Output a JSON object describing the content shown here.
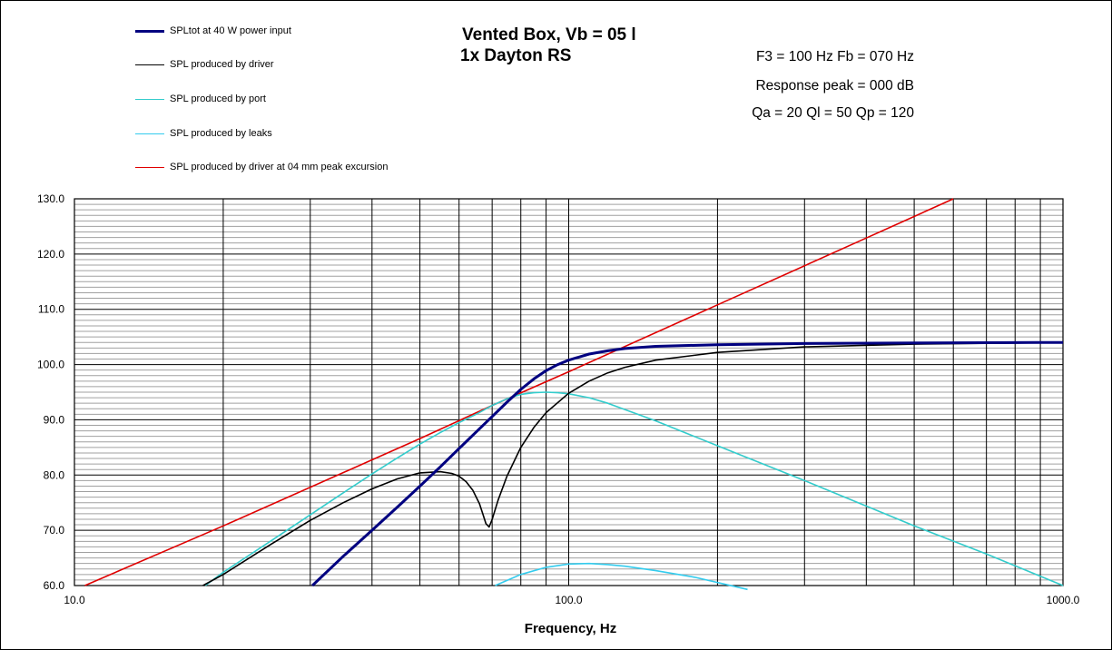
{
  "title_line1": "Vented Box, Vb = 05 l",
  "title_line2": "1x Dayton RS",
  "info": {
    "line1": "F3 = 100 Hz  Fb = 070 Hz",
    "line2": "Response  peak = 000 dB",
    "line3": "Qa = 20  Ql = 50  Qp = 120"
  },
  "legend": [
    {
      "label": "SPLtot at 40 W power input",
      "color": "#000080"
    },
    {
      "label": "SPL produced by driver",
      "color": "#000000"
    },
    {
      "label": "SPL produced by port",
      "color": "#33CCCC"
    },
    {
      "label": "SPL produced by leaks",
      "color": "#33CCEE"
    },
    {
      "label": "SPL produced by driver at 04 mm peak excursion",
      "color": "#E00000"
    }
  ],
  "chart_data": {
    "type": "line",
    "xlabel": "Frequency, Hz",
    "ylabel": "",
    "xscale": "log",
    "xlim": [
      10,
      1000
    ],
    "ylim": [
      60,
      130
    ],
    "xticks": [
      "10.0",
      "100.0",
      "1000.0"
    ],
    "yticks": [
      "60.0",
      "70.0",
      "80.0",
      "90.0",
      "100.0",
      "110.0",
      "120.0",
      "130.0"
    ],
    "grid": true,
    "legend_position": "top-left",
    "series": [
      {
        "name": "SPLtot at 40 W power input",
        "color": "#000080",
        "x": [
          30.3,
          35,
          40,
          45,
          50,
          55,
          60,
          65,
          70,
          75,
          80,
          85,
          90,
          95,
          100,
          110,
          120,
          130,
          150,
          200,
          300,
          500,
          1000
        ],
        "y": [
          60,
          65.3,
          70,
          74.2,
          78.0,
          81.5,
          84.8,
          87.8,
          90.6,
          93.2,
          95.5,
          97.4,
          98.9,
          100.0,
          100.8,
          101.9,
          102.5,
          102.9,
          103.3,
          103.6,
          103.8,
          103.9,
          104.0
        ]
      },
      {
        "name": "SPL produced by driver",
        "color": "#000000",
        "x": [
          18.2,
          20,
          25,
          30,
          35,
          40,
          45,
          50,
          55,
          58,
          60,
          62,
          64,
          66,
          67,
          68,
          69,
          70,
          72,
          75,
          80,
          85,
          90,
          100,
          110,
          120,
          130,
          150,
          200,
          300,
          500,
          1000
        ],
        "y": [
          60,
          62.0,
          67.5,
          71.8,
          75.0,
          77.5,
          79.3,
          80.4,
          80.6,
          80.3,
          79.8,
          78.8,
          77.2,
          74.8,
          73.0,
          71.2,
          70.6,
          72.0,
          75.5,
          79.8,
          85.0,
          88.6,
          91.3,
          94.8,
          97.0,
          98.5,
          99.5,
          100.8,
          102.2,
          103.2,
          103.7,
          104.0
        ]
      },
      {
        "name": "SPL produced by port",
        "color": "#33CCCC",
        "x": [
          18.4,
          20,
          25,
          30,
          35,
          40,
          45,
          50,
          55,
          60,
          65,
          70,
          75,
          80,
          85,
          90,
          95,
          100,
          110,
          120,
          150,
          200,
          300,
          500,
          700,
          1000
        ],
        "y": [
          60,
          62.4,
          68.1,
          72.8,
          76.8,
          80.2,
          83.1,
          85.6,
          87.7,
          89.5,
          91.0,
          92.6,
          93.8,
          94.6,
          94.9,
          95.0,
          94.9,
          94.7,
          94.0,
          93.0,
          89.8,
          85.3,
          79.0,
          70.8,
          65.7,
          60.0
        ]
      },
      {
        "name": "SPL produced by leaks",
        "color": "#33CCEE",
        "x": [
          71,
          80,
          90,
          100,
          110,
          120,
          130,
          150,
          180,
          230
        ],
        "y": [
          60,
          62.0,
          63.3,
          63.9,
          64.0,
          63.8,
          63.5,
          62.7,
          61.5,
          59.3
        ]
      },
      {
        "name": "SPL produced by driver at 04 mm peak excursion",
        "color": "#E00000",
        "x": [
          10.5,
          20,
          50,
          70,
          100,
          200,
          400,
          600
        ],
        "y": [
          60,
          70.8,
          86.6,
          92.6,
          98.7,
          110.8,
          122.9,
          130
        ]
      }
    ]
  }
}
